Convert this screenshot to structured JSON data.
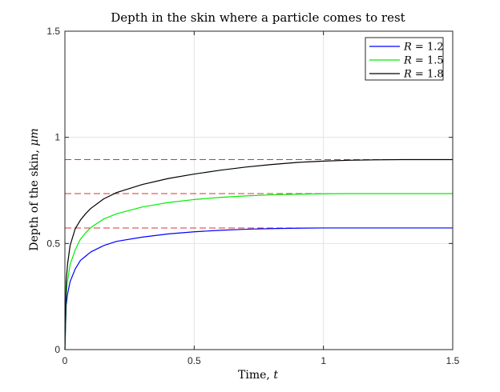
{
  "chart_data": {
    "type": "line",
    "title": "Depth in the skin where a particle comes to rest",
    "xlabel_text": "Time, ",
    "xlabel_var": "t",
    "ylabel_text": "Depth of the skin, ",
    "ylabel_var": "μm",
    "xlim": [
      0,
      1.5
    ],
    "ylim": [
      0,
      1.5
    ],
    "xticks": [
      0,
      0.5,
      1,
      1.5
    ],
    "xtick_labels": [
      "0",
      "0.5",
      "1",
      "1.5"
    ],
    "yticks": [
      0,
      0.5,
      1,
      1.5
    ],
    "ytick_labels": [
      "0",
      "0.5",
      "1",
      "1.5"
    ],
    "grid": true,
    "legend_position": "top-right",
    "asymptotes": {
      "values": [
        0.895,
        0.735,
        0.573
      ],
      "color": "#dd3333",
      "style": "dashed"
    },
    "series": [
      {
        "name": "R = 1.2",
        "legend_var": "R",
        "legend_value": " = 1.2",
        "color": "#0000ff",
        "x": [
          0,
          0.005,
          0.01,
          0.02,
          0.04,
          0.06,
          0.08,
          0.1,
          0.15,
          0.2,
          0.3,
          0.4,
          0.5,
          0.6,
          0.7,
          0.8,
          0.9,
          1.0,
          1.1,
          1.2,
          1.3,
          1.4,
          1.5
        ],
        "y": [
          0,
          0.21,
          0.26,
          0.32,
          0.38,
          0.42,
          0.44,
          0.46,
          0.49,
          0.51,
          0.53,
          0.545,
          0.555,
          0.562,
          0.567,
          0.57,
          0.572,
          0.573,
          0.573,
          0.573,
          0.573,
          0.573,
          0.573
        ]
      },
      {
        "name": "R = 1.5",
        "legend_var": "R",
        "legend_value": " = 1.5",
        "color": "#00ee00",
        "x": [
          0,
          0.005,
          0.01,
          0.02,
          0.04,
          0.06,
          0.08,
          0.1,
          0.15,
          0.2,
          0.3,
          0.4,
          0.5,
          0.6,
          0.7,
          0.8,
          0.9,
          1.0,
          1.1,
          1.2,
          1.3,
          1.4,
          1.5
        ],
        "y": [
          0,
          0.26,
          0.32,
          0.4,
          0.47,
          0.52,
          0.55,
          0.575,
          0.615,
          0.64,
          0.672,
          0.693,
          0.707,
          0.717,
          0.724,
          0.729,
          0.732,
          0.734,
          0.735,
          0.735,
          0.735,
          0.735,
          0.735
        ]
      },
      {
        "name": "R = 1.8",
        "legend_var": "R",
        "legend_value": " = 1.8",
        "color": "#000000",
        "x": [
          0,
          0.005,
          0.01,
          0.02,
          0.04,
          0.06,
          0.08,
          0.1,
          0.15,
          0.2,
          0.3,
          0.4,
          0.5,
          0.6,
          0.7,
          0.8,
          0.9,
          1.0,
          1.1,
          1.2,
          1.3,
          1.4,
          1.5
        ],
        "y": [
          0,
          0.32,
          0.4,
          0.49,
          0.57,
          0.61,
          0.64,
          0.665,
          0.71,
          0.74,
          0.778,
          0.806,
          0.827,
          0.845,
          0.86,
          0.872,
          0.882,
          0.888,
          0.892,
          0.894,
          0.895,
          0.895,
          0.895
        ]
      }
    ]
  }
}
